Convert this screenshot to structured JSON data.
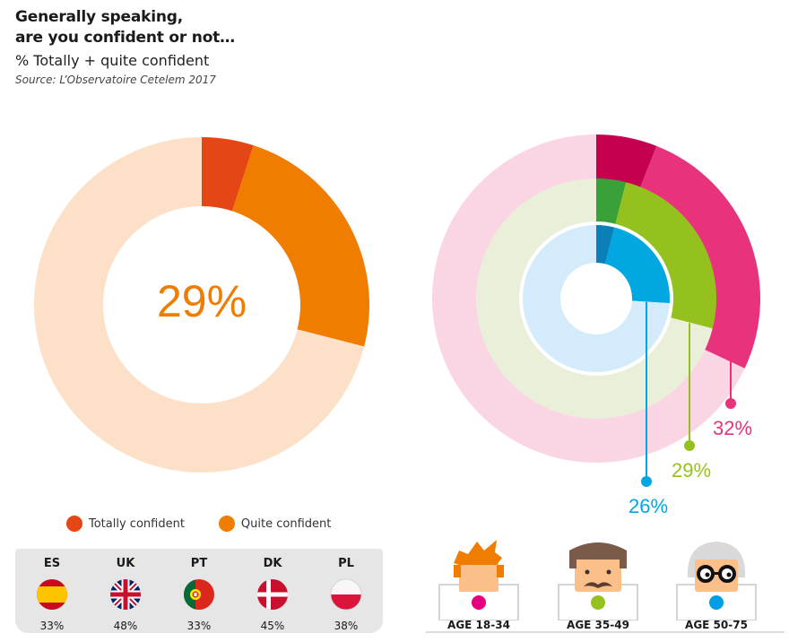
{
  "header": {
    "title_line1": "Generally speaking,",
    "title_line2": "are you confident or not…",
    "subtitle": "% Totally + quite confident",
    "source": "Source: L’Observatoire Cetelem 2017"
  },
  "legend": [
    {
      "label": "Totally confident",
      "color": "#e54615"
    },
    {
      "label": "Quite confident",
      "color": "#f07d00"
    }
  ],
  "countries": [
    {
      "code": "ES",
      "value": "33%",
      "flag": "spain-flag-icon"
    },
    {
      "code": "UK",
      "value": "48%",
      "flag": "uk-flag-icon"
    },
    {
      "code": "PT",
      "value": "33%",
      "flag": "portugal-flag-icon"
    },
    {
      "code": "DK",
      "value": "45%",
      "flag": "denmark-flag-icon"
    },
    {
      "code": "PL",
      "value": "38%",
      "flag": "poland-flag-icon"
    }
  ],
  "ages": [
    {
      "label": "AGE 18-34",
      "color": "#e6007e",
      "icon": "young-man-icon"
    },
    {
      "label": "AGE 35-49",
      "color": "#95c11f",
      "icon": "mustache-man-icon"
    },
    {
      "label": "AGE 50-75",
      "color": "#009fe3",
      "icon": "older-man-glasses-icon"
    }
  ],
  "chart_data": [
    {
      "type": "pie",
      "subtype": "donut",
      "center_label": "29%",
      "segments": [
        {
          "name": "Totally confident",
          "value": 5,
          "color": "#e54615"
        },
        {
          "name": "Quite confident",
          "value": 24,
          "color": "#f07d00"
        },
        {
          "name": "",
          "value": 71,
          "color": "#fce0c8"
        }
      ]
    },
    {
      "type": "pie",
      "subtype": "concentric-donut",
      "series": [
        {
          "name": "AGE 18-34",
          "label": "32%",
          "totally": 6,
          "quite": 26,
          "colors": {
            "totally": "#c4004f",
            "quite": "#e8327c",
            "rest": "#fad6e4"
          }
        },
        {
          "name": "AGE 35-49",
          "label": "29%",
          "totally": 4,
          "quite": 25,
          "colors": {
            "totally": "#3aa038",
            "quite": "#95c11f",
            "rest": "#e9efd9"
          }
        },
        {
          "name": "AGE 50-75",
          "label": "26%",
          "totally": 4,
          "quite": 22,
          "colors": {
            "totally": "#0a7fb8",
            "quite": "#00a7e1",
            "rest": "#d3ebfa"
          }
        }
      ]
    }
  ]
}
